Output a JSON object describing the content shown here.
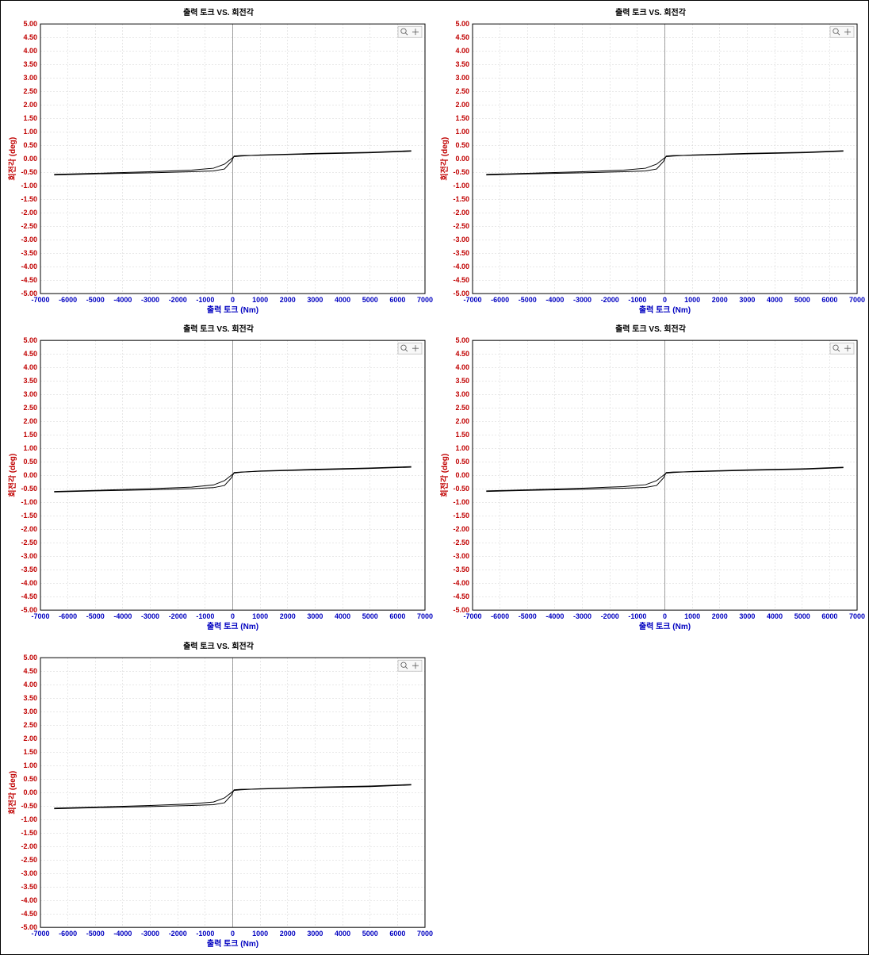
{
  "layout": {
    "rows": 3,
    "cols": 2,
    "panels": 5
  },
  "chart_common": {
    "type": "line",
    "title": "출력 토크 VS. 회전각",
    "title_fontsize": 10,
    "xlabel": "출력 토크 (Nm)",
    "ylabel": "회전각 (deg)",
    "label_fontsize": 10,
    "xlim": [
      -7000,
      7000
    ],
    "ylim": [
      -5.0,
      5.0
    ],
    "xtick_step": 1000,
    "ytick_step": 0.5,
    "xtick_format": "int",
    "ytick_format": "2dec",
    "background_color": "#ffffff",
    "grid_color": "#d0d0d0",
    "grid_dash": "2 2",
    "plot_border_color": "#000000",
    "line_color": "#000000",
    "line_width": 1,
    "ytick_color": "#c00000",
    "xtick_color": "#0000c0",
    "tick_fontsize": 9,
    "toolbox_icons": [
      "zoom-icon",
      "plus-icon"
    ]
  },
  "charts": [
    {
      "series": [
        {
          "pts": [
            [
              -6500,
              -0.6
            ],
            [
              -5000,
              -0.56
            ],
            [
              -3000,
              -0.52
            ],
            [
              -1500,
              -0.48
            ],
            [
              -700,
              -0.45
            ],
            [
              -300,
              -0.38
            ],
            [
              -50,
              -0.1
            ],
            [
              50,
              0.1
            ],
            [
              300,
              0.12
            ],
            [
              1000,
              0.13
            ],
            [
              3000,
              0.18
            ],
            [
              5000,
              0.22
            ],
            [
              6500,
              0.28
            ]
          ]
        },
        {
          "pts": [
            [
              -6500,
              -0.58
            ],
            [
              -5000,
              -0.54
            ],
            [
              -3000,
              -0.48
            ],
            [
              -1500,
              -0.42
            ],
            [
              -700,
              -0.35
            ],
            [
              -300,
              -0.2
            ],
            [
              -50,
              0.0
            ],
            [
              50,
              0.08
            ],
            [
              300,
              0.1
            ],
            [
              1000,
              0.14
            ],
            [
              3000,
              0.2
            ],
            [
              5000,
              0.24
            ],
            [
              6500,
              0.3
            ]
          ]
        }
      ]
    },
    {
      "series": [
        {
          "pts": [
            [
              -6500,
              -0.6
            ],
            [
              -5000,
              -0.56
            ],
            [
              -3000,
              -0.52
            ],
            [
              -1500,
              -0.48
            ],
            [
              -700,
              -0.45
            ],
            [
              -300,
              -0.38
            ],
            [
              -50,
              -0.1
            ],
            [
              50,
              0.1
            ],
            [
              300,
              0.12
            ],
            [
              1000,
              0.13
            ],
            [
              3000,
              0.18
            ],
            [
              5000,
              0.22
            ],
            [
              6500,
              0.28
            ]
          ]
        },
        {
          "pts": [
            [
              -6500,
              -0.58
            ],
            [
              -5000,
              -0.54
            ],
            [
              -3000,
              -0.48
            ],
            [
              -1500,
              -0.42
            ],
            [
              -700,
              -0.35
            ],
            [
              -300,
              -0.2
            ],
            [
              -50,
              0.0
            ],
            [
              50,
              0.08
            ],
            [
              300,
              0.1
            ],
            [
              1000,
              0.14
            ],
            [
              3000,
              0.2
            ],
            [
              5000,
              0.24
            ],
            [
              6500,
              0.3
            ]
          ]
        }
      ]
    },
    {
      "series": [
        {
          "pts": [
            [
              -6500,
              -0.62
            ],
            [
              -5000,
              -0.58
            ],
            [
              -3000,
              -0.54
            ],
            [
              -1500,
              -0.5
            ],
            [
              -700,
              -0.46
            ],
            [
              -300,
              -0.38
            ],
            [
              -50,
              -0.1
            ],
            [
              50,
              0.1
            ],
            [
              300,
              0.12
            ],
            [
              1000,
              0.15
            ],
            [
              3000,
              0.2
            ],
            [
              5000,
              0.25
            ],
            [
              6500,
              0.3
            ]
          ]
        },
        {
          "pts": [
            [
              -6500,
              -0.6
            ],
            [
              -5000,
              -0.56
            ],
            [
              -3000,
              -0.5
            ],
            [
              -1500,
              -0.44
            ],
            [
              -700,
              -0.36
            ],
            [
              -300,
              -0.2
            ],
            [
              -50,
              0.0
            ],
            [
              50,
              0.08
            ],
            [
              300,
              0.11
            ],
            [
              1000,
              0.16
            ],
            [
              3000,
              0.22
            ],
            [
              5000,
              0.27
            ],
            [
              6500,
              0.32
            ]
          ]
        }
      ]
    },
    {
      "series": [
        {
          "pts": [
            [
              -6500,
              -0.6
            ],
            [
              -5000,
              -0.56
            ],
            [
              -3000,
              -0.52
            ],
            [
              -1500,
              -0.48
            ],
            [
              -700,
              -0.45
            ],
            [
              -300,
              -0.38
            ],
            [
              -50,
              -0.1
            ],
            [
              50,
              0.1
            ],
            [
              300,
              0.12
            ],
            [
              1000,
              0.13
            ],
            [
              3000,
              0.18
            ],
            [
              5000,
              0.22
            ],
            [
              6500,
              0.28
            ]
          ]
        },
        {
          "pts": [
            [
              -6500,
              -0.58
            ],
            [
              -5000,
              -0.54
            ],
            [
              -3000,
              -0.48
            ],
            [
              -1500,
              -0.42
            ],
            [
              -700,
              -0.35
            ],
            [
              -300,
              -0.2
            ],
            [
              -50,
              0.0
            ],
            [
              50,
              0.08
            ],
            [
              300,
              0.1
            ],
            [
              1000,
              0.14
            ],
            [
              3000,
              0.2
            ],
            [
              5000,
              0.24
            ],
            [
              6500,
              0.3
            ]
          ]
        }
      ]
    },
    {
      "series": [
        {
          "pts": [
            [
              -6500,
              -0.6
            ],
            [
              -5000,
              -0.56
            ],
            [
              -3000,
              -0.52
            ],
            [
              -1500,
              -0.48
            ],
            [
              -700,
              -0.45
            ],
            [
              -300,
              -0.38
            ],
            [
              -50,
              -0.1
            ],
            [
              50,
              0.1
            ],
            [
              300,
              0.12
            ],
            [
              1000,
              0.13
            ],
            [
              3000,
              0.18
            ],
            [
              5000,
              0.22
            ],
            [
              6500,
              0.28
            ]
          ]
        },
        {
          "pts": [
            [
              -6500,
              -0.58
            ],
            [
              -5000,
              -0.54
            ],
            [
              -3000,
              -0.48
            ],
            [
              -1500,
              -0.42
            ],
            [
              -700,
              -0.35
            ],
            [
              -300,
              -0.2
            ],
            [
              -50,
              0.0
            ],
            [
              50,
              0.08
            ],
            [
              300,
              0.1
            ],
            [
              1000,
              0.14
            ],
            [
              3000,
              0.2
            ],
            [
              5000,
              0.24
            ],
            [
              6500,
              0.3
            ]
          ]
        }
      ]
    }
  ]
}
